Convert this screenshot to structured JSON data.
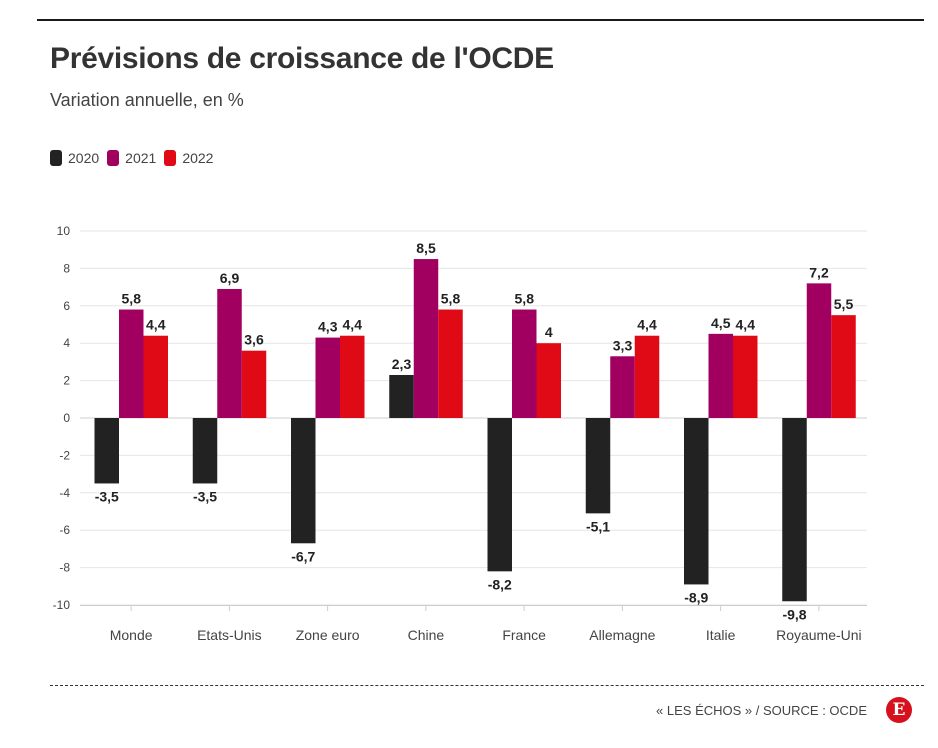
{
  "title": "Prévisions de croissance de l'OCDE",
  "subtitle": "Variation annuelle, en %",
  "source": "« LES ÉCHOS » / SOURCE : OCDE",
  "logo_letter": "E",
  "colors": {
    "2020": "#222222",
    "2021": "#a10060",
    "2022": "#e00a17"
  },
  "chart_data": {
    "type": "bar",
    "title": "Prévisions de croissance de l'OCDE",
    "subtitle": "Variation annuelle, en %",
    "categories": [
      "Monde",
      "Etats-Unis",
      "Zone euro",
      "Chine",
      "France",
      "Allemagne",
      "Italie",
      "Royaume-Uni"
    ],
    "series": [
      {
        "name": "2020",
        "values": [
          -3.5,
          -3.5,
          -6.7,
          2.3,
          -8.2,
          -5.1,
          -8.9,
          -9.8
        ]
      },
      {
        "name": "2021",
        "values": [
          5.8,
          6.9,
          4.3,
          8.5,
          5.8,
          3.3,
          4.5,
          7.2
        ]
      },
      {
        "name": "2022",
        "values": [
          4.4,
          3.6,
          4.4,
          5.8,
          4,
          4.4,
          4.4,
          5.5
        ]
      }
    ],
    "data_labels": [
      [
        "-3,5",
        "-3,5",
        "-6,7",
        "2,3",
        "-8,2",
        "-5,1",
        "-8,9",
        "-9,8"
      ],
      [
        "5,8",
        "6,9",
        "4,3",
        "8,5",
        "5,8",
        "3,3",
        "4,5",
        "7,2"
      ],
      [
        "4,4",
        "3,6",
        "4,4",
        "5,8",
        "4",
        "4,4",
        "4,4",
        "5,5"
      ]
    ],
    "ylim": [
      -10,
      10
    ],
    "yticks": [
      10,
      8,
      6,
      4,
      2,
      0,
      -2,
      -4,
      -6,
      -8,
      -10
    ],
    "xlabel": "",
    "ylabel": "",
    "grid": true,
    "legend": "top-left"
  }
}
